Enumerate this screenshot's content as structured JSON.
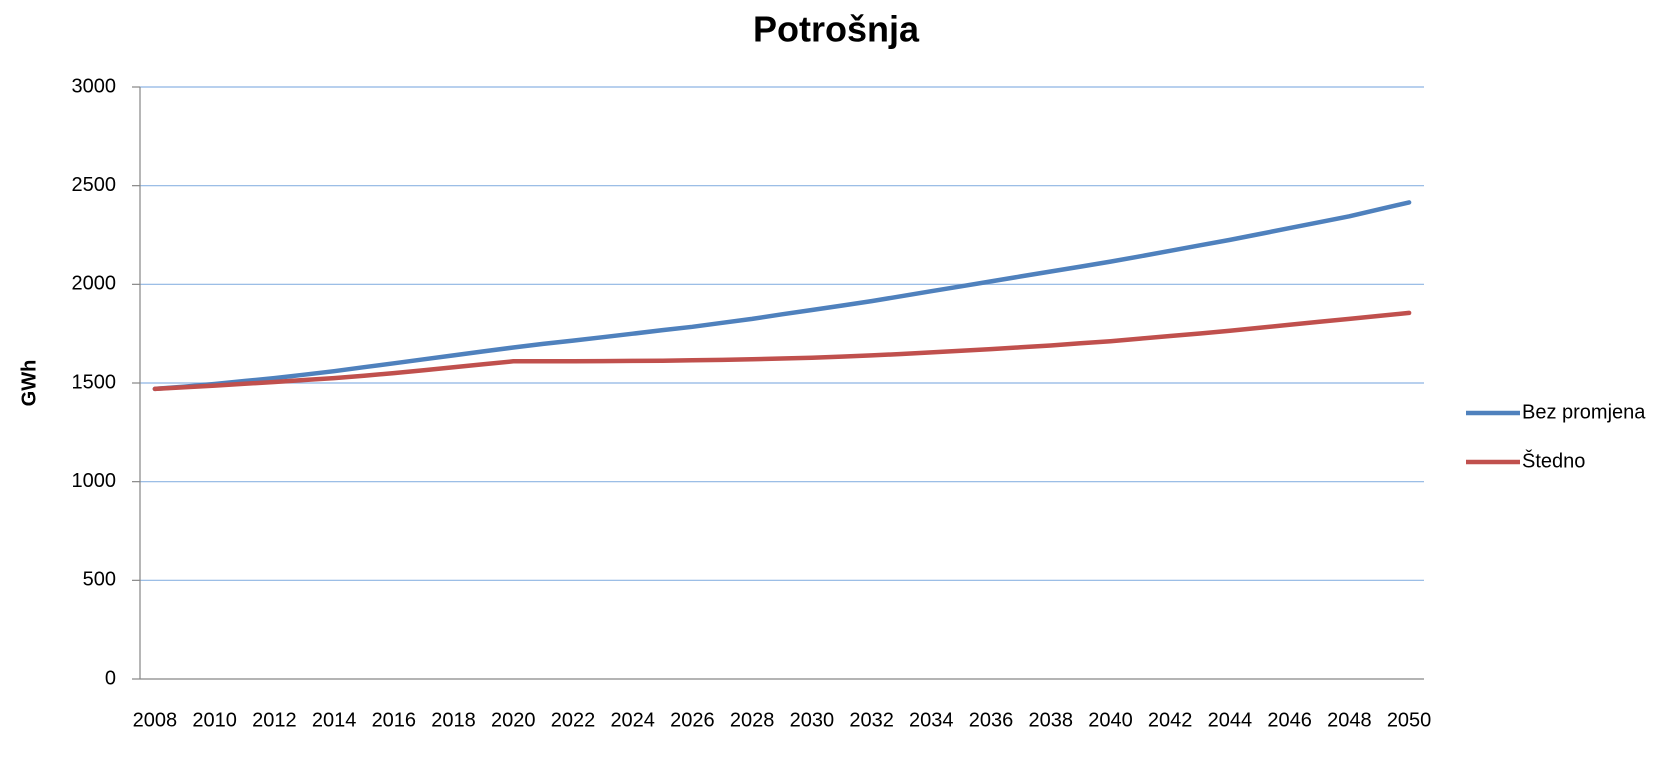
{
  "chart_data": {
    "type": "line",
    "title": "Potrošnja",
    "y_label": "GWh",
    "categories": [
      "2008",
      null,
      "2010",
      null,
      "2012",
      null,
      "2014",
      null,
      "2016",
      null,
      "2018",
      null,
      "2020",
      null,
      "2022",
      null,
      "2024",
      null,
      "2026",
      null,
      "2028",
      null,
      "2030",
      null,
      "2032",
      null,
      "2034",
      null,
      "2036",
      null,
      "2038",
      null,
      "2040",
      null,
      "2042",
      null,
      "2044",
      null,
      "2046",
      null,
      "2048",
      null,
      "2050"
    ],
    "series": [
      {
        "name": "Bez promjena",
        "color": "#4f81bd",
        "values": [
          1470,
          1482,
          1495,
          1510,
          1525,
          1542,
          1560,
          1580,
          1600,
          1620,
          1640,
          1660,
          1680,
          1698,
          1715,
          1732,
          1750,
          1768,
          1785,
          1805,
          1825,
          1848,
          1870,
          1892,
          1915,
          1940,
          1965,
          1990,
          2015,
          2040,
          2065,
          2090,
          2115,
          2142,
          2170,
          2198,
          2225,
          2255,
          2285,
          2315,
          2345,
          2380,
          2415
        ]
      },
      {
        "name": "Štedno",
        "color": "#c0504d",
        "values": [
          1470,
          1478,
          1487,
          1496,
          1505,
          1515,
          1525,
          1537,
          1550,
          1565,
          1580,
          1595,
          1610,
          1610,
          1610,
          1611,
          1612,
          1613,
          1615,
          1617,
          1620,
          1624,
          1628,
          1634,
          1640,
          1647,
          1655,
          1663,
          1672,
          1681,
          1690,
          1701,
          1712,
          1725,
          1738,
          1751,
          1765,
          1780,
          1795,
          1810,
          1825,
          1840,
          1855
        ]
      }
    ],
    "ylim": [
      0,
      3000
    ],
    "yticks": [
      0,
      500,
      1000,
      1500,
      2000,
      2500,
      3000
    ],
    "grid": true,
    "legend": "right"
  }
}
